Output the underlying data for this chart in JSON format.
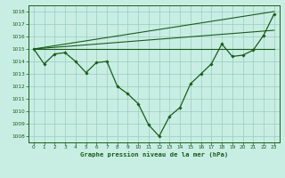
{
  "background_color": "#c8eee4",
  "grid_color": "#99ccbb",
  "line_color": "#1a5c1a",
  "title": "Graphe pression niveau de la mer (hPa)",
  "xlim": [
    -0.5,
    23.5
  ],
  "ylim": [
    1007.5,
    1018.5
  ],
  "yticks": [
    1008,
    1009,
    1010,
    1011,
    1012,
    1013,
    1014,
    1015,
    1016,
    1017,
    1018
  ],
  "xticks": [
    0,
    1,
    2,
    3,
    4,
    5,
    6,
    7,
    8,
    9,
    10,
    11,
    12,
    13,
    14,
    15,
    16,
    17,
    18,
    19,
    20,
    21,
    22,
    23
  ],
  "series": {
    "main": {
      "x": [
        0,
        1,
        2,
        3,
        4,
        5,
        6,
        7,
        8,
        9,
        10,
        11,
        12,
        13,
        14,
        15,
        16,
        17,
        18,
        19,
        20,
        21,
        22,
        23
      ],
      "y": [
        1015.0,
        1013.8,
        1014.6,
        1014.7,
        1014.0,
        1013.1,
        1013.9,
        1014.0,
        1012.0,
        1011.4,
        1010.6,
        1008.9,
        1008.0,
        1009.6,
        1010.3,
        1012.2,
        1013.0,
        1013.8,
        1015.4,
        1014.4,
        1014.5,
        1014.9,
        1016.1,
        1017.8
      ]
    },
    "line1": {
      "x": [
        0,
        23
      ],
      "y": [
        1015.0,
        1015.0
      ]
    },
    "line2": {
      "x": [
        0,
        23
      ],
      "y": [
        1015.0,
        1018.0
      ]
    },
    "line3": {
      "x": [
        0,
        23
      ],
      "y": [
        1015.0,
        1016.5
      ]
    }
  }
}
